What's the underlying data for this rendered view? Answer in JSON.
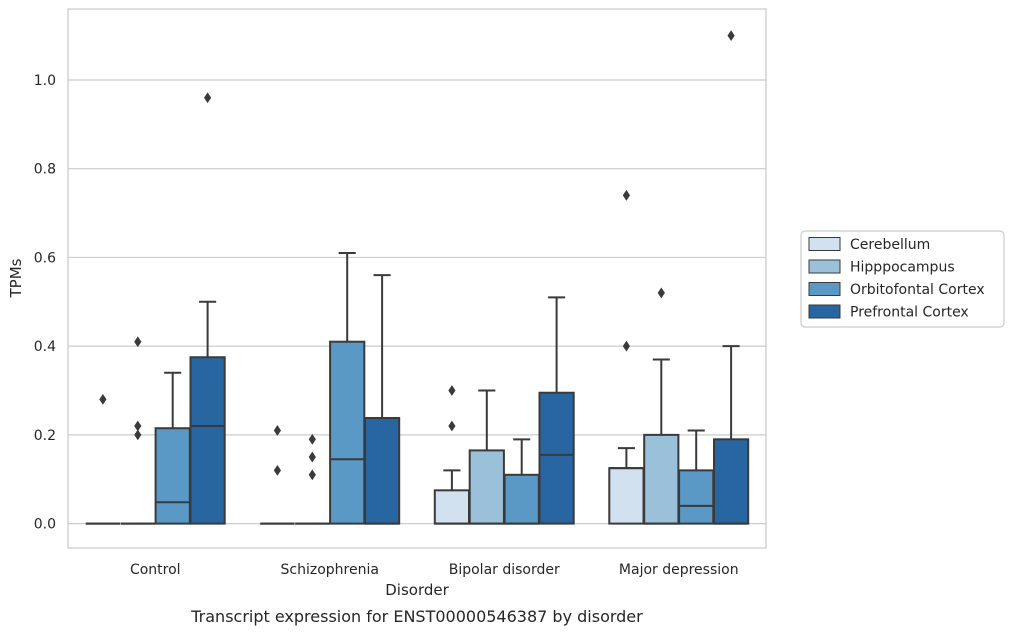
{
  "chart_data": {
    "type": "boxplot",
    "caption": "Transcript expression for ENST00000546387 by disorder",
    "xlabel": "Disorder",
    "ylabel": "TPMs",
    "ylim": [
      -0.055,
      1.16
    ],
    "yticks": [
      0.0,
      0.2,
      0.4,
      0.6,
      0.8,
      1.0
    ],
    "ytick_labels": [
      "0.0",
      "0.2",
      "0.4",
      "0.6",
      "0.8",
      "1.0"
    ],
    "grid": "horizontal",
    "legend_position": "right",
    "categories": [
      "Control",
      "Schizophrenia",
      "Bipolar disorder",
      "Major depression"
    ],
    "series": [
      {
        "name": "Cerebellum",
        "color": "#d1e1f0",
        "boxes": [
          {
            "q1": 0,
            "median": 0,
            "q3": 0,
            "whisker_low": 0,
            "whisker_high": 0,
            "outliers": [
              0.28
            ]
          },
          {
            "q1": 0,
            "median": 0,
            "q3": 0,
            "whisker_low": 0,
            "whisker_high": 0,
            "outliers": [
              0.21,
              0.12
            ]
          },
          {
            "q1": 0,
            "median": 0,
            "q3": 0.075,
            "whisker_low": 0,
            "whisker_high": 0.12,
            "outliers": [
              0.3,
              0.22
            ]
          },
          {
            "q1": 0,
            "median": 0.125,
            "q3": 0.125,
            "whisker_low": 0,
            "whisker_high": 0.17,
            "outliers": [
              0.74,
              0.4
            ]
          }
        ]
      },
      {
        "name": "Hipppocampus",
        "color": "#9bc1da",
        "boxes": [
          {
            "q1": 0,
            "median": 0,
            "q3": 0,
            "whisker_low": 0,
            "whisker_high": 0,
            "outliers": [
              0.41,
              0.22,
              0.2
            ]
          },
          {
            "q1": 0,
            "median": 0,
            "q3": 0,
            "whisker_low": 0,
            "whisker_high": 0,
            "outliers": [
              0.19,
              0.15,
              0.11
            ]
          },
          {
            "q1": 0,
            "median": 0,
            "q3": 0.165,
            "whisker_low": 0,
            "whisker_high": 0.3,
            "outliers": []
          },
          {
            "q1": 0,
            "median": 0,
            "q3": 0.2,
            "whisker_low": 0,
            "whisker_high": 0.37,
            "outliers": [
              0.52
            ]
          }
        ]
      },
      {
        "name": "Orbitofontal Cortex",
        "color": "#5a99c6",
        "boxes": [
          {
            "q1": 0,
            "median": 0.048,
            "q3": 0.215,
            "whisker_low": 0,
            "whisker_high": 0.34,
            "outliers": []
          },
          {
            "q1": 0,
            "median": 0.145,
            "q3": 0.41,
            "whisker_low": 0,
            "whisker_high": 0.61,
            "outliers": []
          },
          {
            "q1": 0,
            "median": 0,
            "q3": 0.11,
            "whisker_low": 0,
            "whisker_high": 0.19,
            "outliers": []
          },
          {
            "q1": 0,
            "median": 0.04,
            "q3": 0.12,
            "whisker_low": 0,
            "whisker_high": 0.21,
            "outliers": []
          }
        ]
      },
      {
        "name": "Prefrontal Cortex",
        "color": "#2866a1",
        "boxes": [
          {
            "q1": 0,
            "median": 0.22,
            "q3": 0.375,
            "whisker_low": 0,
            "whisker_high": 0.5,
            "outliers": [
              0.96
            ]
          },
          {
            "q1": 0,
            "median": 0,
            "q3": 0.238,
            "whisker_low": 0,
            "whisker_high": 0.56,
            "outliers": []
          },
          {
            "q1": 0,
            "median": 0.155,
            "q3": 0.295,
            "whisker_low": 0,
            "whisker_high": 0.51,
            "outliers": []
          },
          {
            "q1": 0,
            "median": 0,
            "q3": 0.19,
            "whisker_low": 0,
            "whisker_high": 0.4,
            "outliers": [
              1.1
            ]
          }
        ]
      }
    ]
  }
}
